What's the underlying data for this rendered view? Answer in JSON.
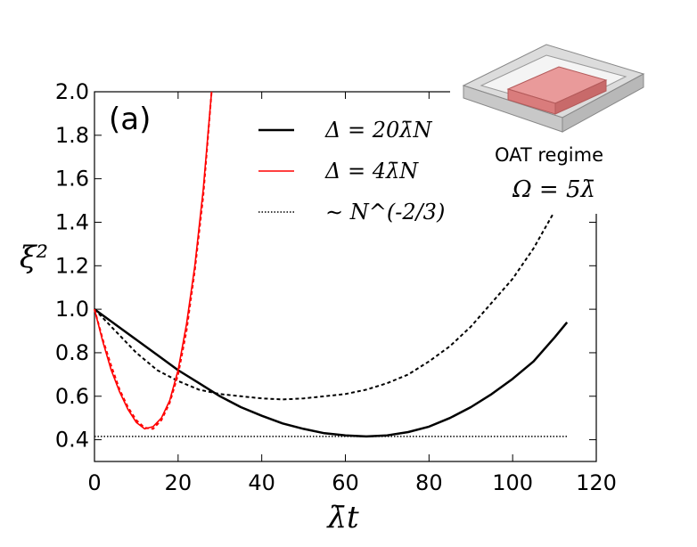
{
  "chart_data": {
    "type": "line",
    "panel_label": "(a)",
    "xlabel": "λ̄t",
    "ylabel": "ξ²",
    "xlim": [
      0,
      120
    ],
    "ylim": [
      0.3,
      2.0
    ],
    "x_ticks": [
      "0",
      "20",
      "40",
      "60",
      "80",
      "100",
      "120"
    ],
    "y_ticks": [
      "0.4",
      "0.6",
      "0.8",
      "1.0",
      "1.2",
      "1.4",
      "1.6",
      "1.8",
      "2.0"
    ],
    "grid": false,
    "legend_position": "top-center",
    "series": [
      {
        "name": "Δ = 20λ̄N",
        "color": "#000000",
        "style": "solid",
        "x": [
          0,
          5,
          10,
          15,
          20,
          25,
          30,
          35,
          40,
          45,
          50,
          55,
          60,
          65,
          70,
          75,
          80,
          85,
          90,
          95,
          100,
          105,
          110,
          113
        ],
        "y": [
          1.0,
          0.93,
          0.86,
          0.79,
          0.72,
          0.66,
          0.6,
          0.55,
          0.51,
          0.475,
          0.45,
          0.43,
          0.42,
          0.415,
          0.42,
          0.435,
          0.46,
          0.5,
          0.55,
          0.61,
          0.68,
          0.76,
          0.87,
          0.94
        ]
      },
      {
        "name": "Δ = 20λ̄N (dashed)",
        "color": "#000000",
        "style": "dashed",
        "x": [
          0,
          5,
          10,
          15,
          20,
          25,
          30,
          35,
          40,
          45,
          50,
          55,
          60,
          65,
          70,
          75,
          80,
          85,
          90,
          95,
          100,
          105,
          110,
          113
        ],
        "y": [
          1.0,
          0.9,
          0.8,
          0.72,
          0.67,
          0.63,
          0.61,
          0.6,
          0.59,
          0.585,
          0.59,
          0.6,
          0.61,
          0.63,
          0.66,
          0.7,
          0.76,
          0.83,
          0.92,
          1.03,
          1.14,
          1.28,
          1.45,
          1.55
        ]
      },
      {
        "name": "Δ = 4λ̄N",
        "color": "#ff0000",
        "style": "solid",
        "x": [
          0,
          2,
          4,
          6,
          8,
          10,
          12,
          14,
          16,
          18,
          20,
          22,
          24,
          26,
          28
        ],
        "y": [
          1.0,
          0.85,
          0.72,
          0.62,
          0.54,
          0.48,
          0.45,
          0.46,
          0.5,
          0.58,
          0.72,
          0.93,
          1.2,
          1.55,
          2.0
        ]
      },
      {
        "name": "Δ = 4λ̄N (dashed)",
        "color": "#ff0000",
        "style": "dashed",
        "x": [
          0,
          2,
          4,
          6,
          8,
          10,
          12,
          14,
          16,
          18,
          20,
          22,
          24,
          26,
          28
        ],
        "y": [
          1.0,
          0.86,
          0.74,
          0.63,
          0.55,
          0.49,
          0.455,
          0.45,
          0.49,
          0.57,
          0.7,
          0.9,
          1.18,
          1.52,
          2.0
        ]
      },
      {
        "name": "∼ N^(-2/3)",
        "color": "#000000",
        "style": "dotted",
        "x": [
          0,
          113
        ],
        "y": [
          0.415,
          0.415
        ]
      }
    ],
    "legend": [
      {
        "label": "Δ = 20λ̄N",
        "color": "#000000",
        "style": "solid"
      },
      {
        "label": "Δ = 4λ̄N",
        "color": "#ff0000",
        "style": "solid"
      },
      {
        "label": "∼ N^(-2/3)",
        "color": "#000000",
        "style": "dotted"
      }
    ],
    "inset": {
      "caption": "OAT regime",
      "equation": "Ω = 5λ̄",
      "box_color": "#e08080",
      "frame_color": "#cccccc"
    }
  }
}
